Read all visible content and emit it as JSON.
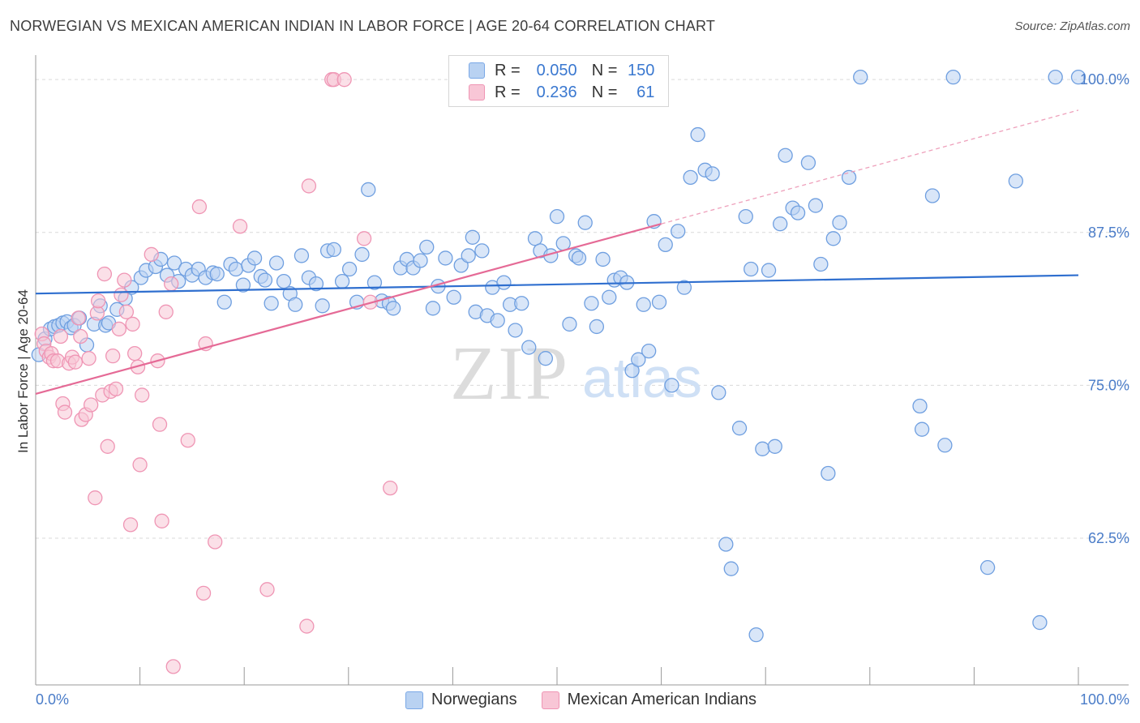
{
  "title": "NORWEGIAN VS MEXICAN AMERICAN INDIAN IN LABOR FORCE | AGE 20-64 CORRELATION CHART",
  "source": "Source: ZipAtlas.com",
  "watermark": {
    "zip": "ZIP",
    "atlas": "atlas"
  },
  "legend": {
    "r_label": "R =",
    "n_label": "N =",
    "series": [
      {
        "name": "Norwegians",
        "r": "0.050",
        "n": "150",
        "color": "#7aa8e6",
        "fill": "#b9d2f2"
      },
      {
        "name": "Mexican American Indians",
        "r": "0.236",
        "n": "61",
        "color": "#ef95b4",
        "fill": "#f8c6d6"
      }
    ]
  },
  "chart_data": {
    "type": "scatter",
    "title": "NORWEGIAN VS MEXICAN AMERICAN INDIAN IN LABOR FORCE | AGE 20-64 CORRELATION CHART",
    "xlabel": "",
    "ylabel": "In Labor Force | Age 20-64",
    "xlim": [
      0,
      100
    ],
    "ylim": [
      50.5,
      102
    ],
    "x_tick_labels": [
      "0.0%",
      "100.0%"
    ],
    "y_ticks": [
      62.5,
      75.0,
      87.5,
      100.0
    ],
    "y_tick_labels": [
      "62.5%",
      "75.0%",
      "87.5%",
      "100.0%"
    ],
    "grid": true,
    "series": [
      {
        "name": "Norwegians",
        "color": "#7aa8e6",
        "trend": {
          "x0": 0,
          "y0": 82.5,
          "x1": 100,
          "y1": 84.0
        },
        "points": [
          [
            0.3,
            77.5
          ],
          [
            0.9,
            78.8
          ],
          [
            1.4,
            79.6
          ],
          [
            1.8,
            79.8
          ],
          [
            2.2,
            79.9
          ],
          [
            2.6,
            80.1
          ],
          [
            3.0,
            80.2
          ],
          [
            3.4,
            79.7
          ],
          [
            3.7,
            79.9
          ],
          [
            4.2,
            80.5
          ],
          [
            4.9,
            78.3
          ],
          [
            5.6,
            80.0
          ],
          [
            6.2,
            81.5
          ],
          [
            6.7,
            79.9
          ],
          [
            7.0,
            80.1
          ],
          [
            7.8,
            81.2
          ],
          [
            8.6,
            82.1
          ],
          [
            9.2,
            83.0
          ],
          [
            10.1,
            83.8
          ],
          [
            10.6,
            84.4
          ],
          [
            11.5,
            84.7
          ],
          [
            12.0,
            85.3
          ],
          [
            12.6,
            84.0
          ],
          [
            13.3,
            85.0
          ],
          [
            13.7,
            83.5
          ],
          [
            14.4,
            84.5
          ],
          [
            15.0,
            84.0
          ],
          [
            15.6,
            84.5
          ],
          [
            16.3,
            83.8
          ],
          [
            17.0,
            84.2
          ],
          [
            17.4,
            84.1
          ],
          [
            18.1,
            81.8
          ],
          [
            18.7,
            84.9
          ],
          [
            19.2,
            84.5
          ],
          [
            19.9,
            83.2
          ],
          [
            20.4,
            84.8
          ],
          [
            21.0,
            85.4
          ],
          [
            21.6,
            83.9
          ],
          [
            22.0,
            83.6
          ],
          [
            22.6,
            81.7
          ],
          [
            23.1,
            85.0
          ],
          [
            23.8,
            83.5
          ],
          [
            24.4,
            82.5
          ],
          [
            24.9,
            81.6
          ],
          [
            25.5,
            85.6
          ],
          [
            26.2,
            83.8
          ],
          [
            26.9,
            83.3
          ],
          [
            27.5,
            81.5
          ],
          [
            28.0,
            86.0
          ],
          [
            28.6,
            86.1
          ],
          [
            29.4,
            83.5
          ],
          [
            30.1,
            84.5
          ],
          [
            30.8,
            81.8
          ],
          [
            31.3,
            85.7
          ],
          [
            31.9,
            91.0
          ],
          [
            32.5,
            83.4
          ],
          [
            33.2,
            81.9
          ],
          [
            33.9,
            81.7
          ],
          [
            34.3,
            81.3
          ],
          [
            35.0,
            84.6
          ],
          [
            35.6,
            85.3
          ],
          [
            36.2,
            84.6
          ],
          [
            36.9,
            85.2
          ],
          [
            37.5,
            86.3
          ],
          [
            38.1,
            81.3
          ],
          [
            38.6,
            83.1
          ],
          [
            39.3,
            85.4
          ],
          [
            40.1,
            82.2
          ],
          [
            40.8,
            84.8
          ],
          [
            41.5,
            85.6
          ],
          [
            41.9,
            87.1
          ],
          [
            42.2,
            81.0
          ],
          [
            42.8,
            86.0
          ],
          [
            43.3,
            80.7
          ],
          [
            43.8,
            83.0
          ],
          [
            44.3,
            80.3
          ],
          [
            44.9,
            83.4
          ],
          [
            45.5,
            81.6
          ],
          [
            46.0,
            79.5
          ],
          [
            46.6,
            81.7
          ],
          [
            47.3,
            78.1
          ],
          [
            47.9,
            87.0
          ],
          [
            48.4,
            86.0
          ],
          [
            48.9,
            77.2
          ],
          [
            49.4,
            85.6
          ],
          [
            50.0,
            88.8
          ],
          [
            50.6,
            86.6
          ],
          [
            51.2,
            80.0
          ],
          [
            51.8,
            85.6
          ],
          [
            52.1,
            85.4
          ],
          [
            52.7,
            88.3
          ],
          [
            53.3,
            81.7
          ],
          [
            53.8,
            79.8
          ],
          [
            54.4,
            85.3
          ],
          [
            55.0,
            82.2
          ],
          [
            55.5,
            83.6
          ],
          [
            56.1,
            83.8
          ],
          [
            56.7,
            83.4
          ],
          [
            57.2,
            76.2
          ],
          [
            57.8,
            77.1
          ],
          [
            58.3,
            81.6
          ],
          [
            58.8,
            77.8
          ],
          [
            59.3,
            88.4
          ],
          [
            59.8,
            81.8
          ],
          [
            60.4,
            86.5
          ],
          [
            61.0,
            75.0
          ],
          [
            61.6,
            87.6
          ],
          [
            62.2,
            83.0
          ],
          [
            62.8,
            92.0
          ],
          [
            63.5,
            95.5
          ],
          [
            64.2,
            92.6
          ],
          [
            64.9,
            92.3
          ],
          [
            65.5,
            74.4
          ],
          [
            66.2,
            62.0
          ],
          [
            66.7,
            60.0
          ],
          [
            67.5,
            71.5
          ],
          [
            68.1,
            88.8
          ],
          [
            68.6,
            84.5
          ],
          [
            69.1,
            54.6
          ],
          [
            69.7,
            69.8
          ],
          [
            70.3,
            84.4
          ],
          [
            70.9,
            70.0
          ],
          [
            71.4,
            88.2
          ],
          [
            71.9,
            93.8
          ],
          [
            72.6,
            89.5
          ],
          [
            73.1,
            89.1
          ],
          [
            74.1,
            93.2
          ],
          [
            74.8,
            89.7
          ],
          [
            75.3,
            84.9
          ],
          [
            76.0,
            67.8
          ],
          [
            76.5,
            87.0
          ],
          [
            77.1,
            88.3
          ],
          [
            78.0,
            92.0
          ],
          [
            79.1,
            100.2
          ],
          [
            84.8,
            73.3
          ],
          [
            85.0,
            71.4
          ],
          [
            86.0,
            90.5
          ],
          [
            87.2,
            70.1
          ],
          [
            88.0,
            100.2
          ],
          [
            91.3,
            60.1
          ],
          [
            94.0,
            91.7
          ],
          [
            96.3,
            55.6
          ],
          [
            97.8,
            100.2
          ],
          [
            100.0,
            100.2
          ]
        ]
      },
      {
        "name": "Mexican American Indians",
        "color": "#ef95b4",
        "trend": {
          "x0": 0,
          "y0": 74.3,
          "x1": 60,
          "y1": 88.2,
          "dash_x1": 100,
          "dash_y1": 97.5
        },
        "points": [
          [
            0.6,
            79.2
          ],
          [
            0.8,
            78.4
          ],
          [
            1.0,
            77.8
          ],
          [
            1.3,
            77.3
          ],
          [
            1.5,
            77.6
          ],
          [
            1.7,
            77.0
          ],
          [
            2.1,
            77.0
          ],
          [
            2.4,
            79.0
          ],
          [
            2.6,
            73.5
          ],
          [
            2.8,
            72.8
          ],
          [
            3.2,
            76.8
          ],
          [
            3.5,
            77.3
          ],
          [
            3.8,
            76.9
          ],
          [
            4.1,
            80.5
          ],
          [
            4.3,
            79.0
          ],
          [
            4.4,
            72.2
          ],
          [
            4.8,
            72.6
          ],
          [
            5.1,
            77.2
          ],
          [
            5.3,
            73.4
          ],
          [
            5.7,
            65.8
          ],
          [
            5.9,
            80.9
          ],
          [
            6.0,
            81.9
          ],
          [
            6.4,
            74.2
          ],
          [
            6.6,
            84.1
          ],
          [
            6.9,
            70.0
          ],
          [
            7.2,
            74.5
          ],
          [
            7.4,
            77.4
          ],
          [
            7.7,
            74.7
          ],
          [
            8.0,
            79.6
          ],
          [
            8.2,
            82.4
          ],
          [
            8.5,
            83.6
          ],
          [
            8.7,
            81.0
          ],
          [
            9.1,
            63.6
          ],
          [
            9.3,
            80.0
          ],
          [
            9.5,
            77.6
          ],
          [
            9.8,
            76.5
          ],
          [
            10.0,
            68.5
          ],
          [
            10.2,
            74.2
          ],
          [
            11.1,
            85.7
          ],
          [
            11.7,
            77.0
          ],
          [
            11.9,
            71.8
          ],
          [
            12.1,
            63.9
          ],
          [
            12.5,
            81.0
          ],
          [
            13.0,
            83.3
          ],
          [
            13.2,
            52.0
          ],
          [
            14.6,
            70.5
          ],
          [
            15.7,
            89.6
          ],
          [
            16.1,
            58.0
          ],
          [
            16.3,
            78.4
          ],
          [
            17.2,
            62.2
          ],
          [
            19.6,
            88.0
          ],
          [
            22.2,
            58.3
          ],
          [
            26.0,
            55.3
          ],
          [
            26.2,
            91.3
          ],
          [
            28.4,
            100.0
          ],
          [
            28.6,
            100.0
          ],
          [
            29.6,
            100.0
          ],
          [
            31.5,
            87.0
          ],
          [
            32.1,
            81.8
          ],
          [
            34.0,
            66.6
          ],
          [
            44.9,
            98.8
          ]
        ]
      }
    ]
  }
}
